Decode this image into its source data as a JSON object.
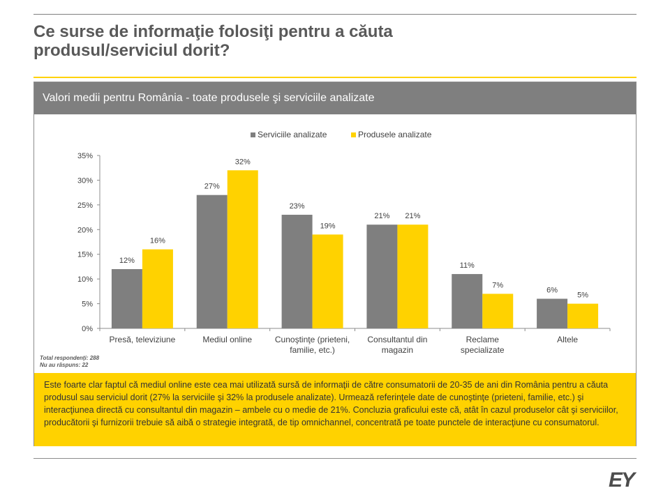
{
  "slide": {
    "title_line1": "Ce surse de informaţie folosiţi pentru a căuta",
    "title_line2": "produsul/serviciul dorit?",
    "panel_header": "Valori medii pentru România - toate produsele şi serviciile analizate",
    "footnote_line1": "Total respondenţi: 288",
    "footnote_line2": "Nu au răspuns: 22",
    "summary": "Este foarte clar faptul că mediul online este cea mai utilizată sursă de informaţii de către consumatorii de 20-35 de ani din România pentru a căuta produsul sau serviciul dorit (27% la serviciile şi 32% la produsele analizate). Urmează referinţele date de cunoştinţe (prieteni, familie, etc.) şi interacţiunea directă cu consultantul din magazin – ambele cu o medie de 21%. Concluzia graficului este că, atât în cazul produselor cât şi serviciilor, producătorii şi furnizorii trebuie să aibă o strategie integrată, de tip omnichannel, concentrată pe toate punctele de interacţiune cu consumatorul.",
    "logo_text": "EY",
    "colors": {
      "accent": "#ffd200",
      "gray": "#7f7f7f",
      "text": "#595959"
    }
  },
  "chart_data": {
    "type": "bar",
    "categories": [
      [
        "Presă, televiziune"
      ],
      [
        "Mediul online"
      ],
      [
        "Cunoştinţe (prieteni,",
        "familie, etc.)"
      ],
      [
        "Consultantul din",
        "magazin"
      ],
      [
        "Reclame",
        "specializate"
      ],
      [
        "Altele"
      ]
    ],
    "series": [
      {
        "name": "Serviciile analizate",
        "color": "#7f7f7f",
        "values": [
          12,
          27,
          23,
          21,
          11,
          6
        ],
        "labels": [
          "12%",
          "27%",
          "23%",
          "21%",
          "11%",
          "6%"
        ]
      },
      {
        "name": "Produsele analizate",
        "color": "#ffd200",
        "values": [
          16,
          32,
          19,
          21,
          7,
          5
        ],
        "labels": [
          "16%",
          "32%",
          "19%",
          "21%",
          "7%",
          "5%"
        ]
      }
    ],
    "ylim": [
      0,
      35
    ],
    "yticks": [
      {
        "v": 0,
        "label": "0%"
      },
      {
        "v": 5,
        "label": "5%"
      },
      {
        "v": 10,
        "label": "10%"
      },
      {
        "v": 15,
        "label": "15%"
      },
      {
        "v": 20,
        "label": "20%"
      },
      {
        "v": 25,
        "label": "25%"
      },
      {
        "v": 30,
        "label": "30%"
      },
      {
        "v": 35,
        "label": "35%"
      }
    ],
    "grid": false,
    "legend_position": "top"
  }
}
